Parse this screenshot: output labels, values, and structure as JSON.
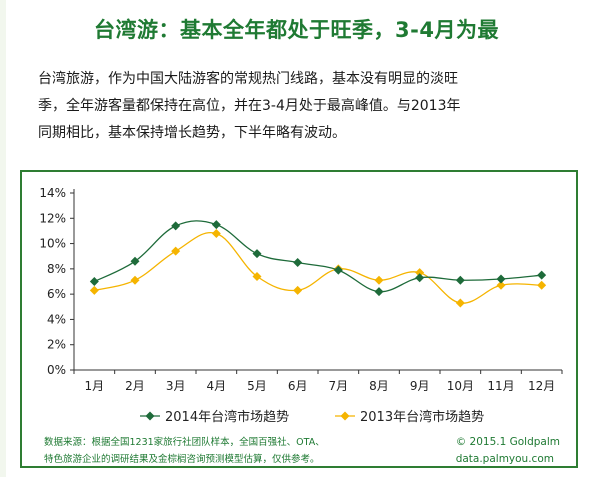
{
  "header": {
    "title": "台湾游：基本全年都处于旺季，3-4月为最"
  },
  "description": {
    "line1": "台湾旅游，作为中国大陆游客的常规热门线路，基本没有明显的淡旺",
    "line2": "季，全年游客量都保持在高位，并在3-4月处于最高峰值。与2013年",
    "line3": "同期相比，基本保持增长趋势，下半年略有波动。"
  },
  "chart_data": {
    "type": "line",
    "categories": [
      "1月",
      "2月",
      "3月",
      "4月",
      "5月",
      "6月",
      "7月",
      "8月",
      "9月",
      "10月",
      "11月",
      "12月"
    ],
    "ylim": [
      0,
      14
    ],
    "yticks": [
      "0%",
      "2%",
      "4%",
      "6%",
      "8%",
      "10%",
      "12%",
      "14%"
    ],
    "series": [
      {
        "name": "2014年台湾市场趋势",
        "color": "#1e6b3a",
        "marker": "diamond",
        "values": [
          7.0,
          8.6,
          11.4,
          11.5,
          9.2,
          8.5,
          7.9,
          6.2,
          7.3,
          7.1,
          7.2,
          7.5
        ]
      },
      {
        "name": "2013年台湾市场趋势",
        "color": "#f5b400",
        "marker": "diamond",
        "values": [
          6.3,
          7.1,
          9.4,
          10.8,
          7.4,
          6.3,
          8.0,
          7.1,
          7.7,
          5.3,
          6.7,
          6.7
        ]
      }
    ]
  },
  "footer": {
    "source_line1": "数据来源：根据全国1231家旅行社团队样本，全国百强社、OTA、",
    "source_line2": "特色旅游企业的调研结果及金棕榈咨询预测模型估算，仅供参考。",
    "copyright": "© 2015.1 Goldpalm",
    "website": "data.palmyou.com"
  }
}
